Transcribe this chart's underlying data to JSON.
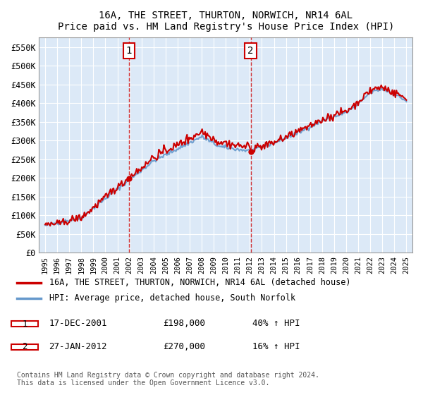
{
  "title": "16A, THE STREET, THURTON, NORWICH, NR14 6AL",
  "subtitle": "Price paid vs. HM Land Registry's House Price Index (HPI)",
  "background_color": "#dce9f7",
  "plot_bg_color": "#dce9f7",
  "sale1_date": "17-DEC-2001",
  "sale1_price": 198000,
  "sale1_hpi": "40%",
  "sale2_date": "27-JAN-2012",
  "sale2_price": 270000,
  "sale2_hpi": "16%",
  "legend_label1": "16A, THE STREET, THURTON, NORWICH, NR14 6AL (detached house)",
  "legend_label2": "HPI: Average price, detached house, South Norfolk",
  "footer": "Contains HM Land Registry data © Crown copyright and database right 2024.\nThis data is licensed under the Open Government Licence v3.0.",
  "sale1_color": "#cc0000",
  "sale2_color": "#cc0000",
  "hpi_color": "#6699cc",
  "marker1_x": 2001.96,
  "marker1_y": 198000,
  "marker2_x": 2012.07,
  "marker2_y": 270000,
  "ylim": [
    0,
    575000
  ],
  "xlim_start": 1994.5,
  "xlim_end": 2025.5,
  "yticks": [
    0,
    50000,
    100000,
    150000,
    200000,
    250000,
    300000,
    350000,
    400000,
    450000,
    500000,
    550000
  ],
  "ytick_labels": [
    "£0",
    "£50K",
    "£100K",
    "£150K",
    "£200K",
    "£250K",
    "£300K",
    "£350K",
    "£400K",
    "£450K",
    "£500K",
    "£550K"
  ],
  "xtick_years": [
    1995,
    1996,
    1997,
    1998,
    1999,
    2000,
    2001,
    2002,
    2003,
    2004,
    2005,
    2006,
    2007,
    2008,
    2009,
    2010,
    2011,
    2012,
    2013,
    2014,
    2015,
    2016,
    2017,
    2018,
    2019,
    2020,
    2021,
    2022,
    2023,
    2024,
    2025
  ]
}
